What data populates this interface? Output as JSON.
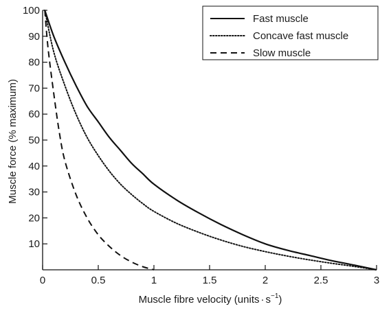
{
  "chart_data": {
    "type": "line",
    "title": "",
    "xlabel": {
      "prefix": "Muscle fibre velocity (units",
      "dot": "·",
      "unit": "s",
      "exponent": "−1",
      "suffix": ")"
    },
    "ylabel": "Muscle force (% maximum)",
    "xlim": [
      0,
      3
    ],
    "ylim": [
      0,
      100
    ],
    "x_ticks": [
      {
        "value": 0,
        "label": "0"
      },
      {
        "value": 0.5,
        "label": "0.5"
      },
      {
        "value": 1,
        "label": "1"
      },
      {
        "value": 1.5,
        "label": "1.5"
      },
      {
        "value": 2,
        "label": "2"
      },
      {
        "value": 2.5,
        "label": "2.5"
      },
      {
        "value": 3,
        "label": "3"
      }
    ],
    "y_ticks": [
      {
        "value": 10,
        "label": "10"
      },
      {
        "value": 20,
        "label": "20"
      },
      {
        "value": 30,
        "label": "30"
      },
      {
        "value": 40,
        "label": "40"
      },
      {
        "value": 50,
        "label": "50"
      },
      {
        "value": 60,
        "label": "60"
      },
      {
        "value": 70,
        "label": "70"
      },
      {
        "value": 80,
        "label": "80"
      },
      {
        "value": 90,
        "label": "90"
      },
      {
        "value": 100,
        "label": "100"
      }
    ],
    "grid": false,
    "legend_position": "top-right",
    "series": [
      {
        "name": "Fast muscle",
        "line_style": "solid",
        "color": "#111111",
        "points": [
          [
            0.02,
            100
          ],
          [
            0.1,
            90
          ],
          [
            0.2,
            80
          ],
          [
            0.3,
            71
          ],
          [
            0.4,
            63
          ],
          [
            0.5,
            57
          ],
          [
            0.6,
            51
          ],
          [
            0.7,
            46
          ],
          [
            0.8,
            41
          ],
          [
            0.9,
            37
          ],
          [
            1.0,
            33
          ],
          [
            1.2,
            27
          ],
          [
            1.4,
            22
          ],
          [
            1.6,
            17.5
          ],
          [
            1.8,
            13.5
          ],
          [
            2.0,
            10
          ],
          [
            2.2,
            7.5
          ],
          [
            2.4,
            5.5
          ],
          [
            2.6,
            3.5
          ],
          [
            2.8,
            1.8
          ],
          [
            3.0,
            0
          ]
        ]
      },
      {
        "name": "Concave fast muscle",
        "line_style": "dotted",
        "color": "#111111",
        "points": [
          [
            0.02,
            100
          ],
          [
            0.1,
            84
          ],
          [
            0.2,
            71
          ],
          [
            0.3,
            60
          ],
          [
            0.4,
            51
          ],
          [
            0.5,
            44
          ],
          [
            0.6,
            38
          ],
          [
            0.7,
            33
          ],
          [
            0.8,
            29
          ],
          [
            0.9,
            25.5
          ],
          [
            1.0,
            22.5
          ],
          [
            1.2,
            18
          ],
          [
            1.4,
            14.5
          ],
          [
            1.6,
            11.5
          ],
          [
            1.8,
            9
          ],
          [
            2.0,
            7
          ],
          [
            2.2,
            5.3
          ],
          [
            2.4,
            3.8
          ],
          [
            2.6,
            2.5
          ],
          [
            2.8,
            1.3
          ],
          [
            3.0,
            0
          ]
        ]
      },
      {
        "name": "Slow muscle",
        "line_style": "dashed",
        "color": "#111111",
        "points": [
          [
            0.02,
            100
          ],
          [
            0.05,
            85
          ],
          [
            0.1,
            68
          ],
          [
            0.15,
            53
          ],
          [
            0.2,
            42
          ],
          [
            0.3,
            29
          ],
          [
            0.4,
            20
          ],
          [
            0.5,
            13.5
          ],
          [
            0.6,
            9
          ],
          [
            0.7,
            5.5
          ],
          [
            0.8,
            3
          ],
          [
            0.9,
            1.2
          ],
          [
            1.0,
            0
          ]
        ]
      }
    ]
  }
}
